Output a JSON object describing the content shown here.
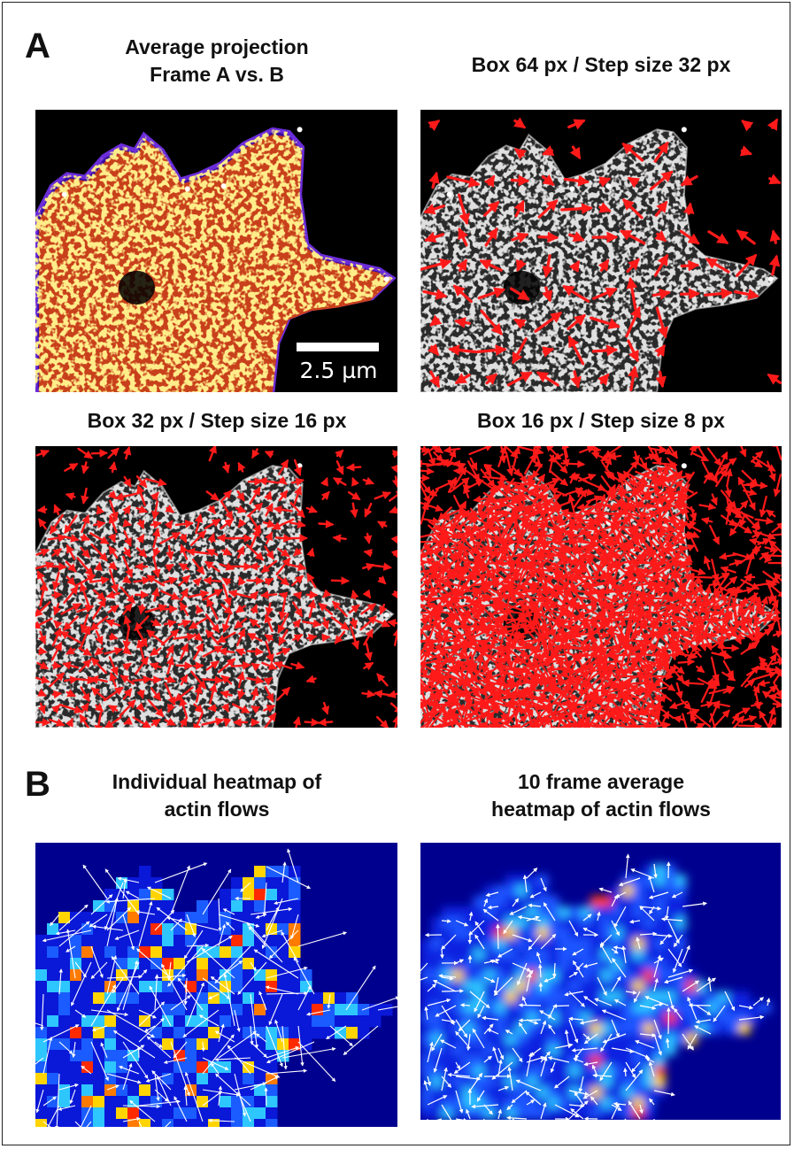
{
  "panel_a": {
    "letter": "A",
    "titles": {
      "avg_line1": "Average projection",
      "avg_line2": "Frame A vs. B",
      "box64": "Box 64 px / Step size 32 px",
      "box32": "Box 32 px / Step size 16 px",
      "box16": "Box 16 px / Step size 8 px"
    },
    "scale_bar_label": "2.5 µm",
    "colors": {
      "cmap_low": "#3a0ca3",
      "cmap_mid": "#e8641a",
      "cmap_high": "#ffe066",
      "vector": "#ff1a1a"
    }
  },
  "panel_b": {
    "letter": "B",
    "titles": {
      "individual_line1": "Individual heatmap of",
      "individual_line2": "actin flows",
      "average_line1": "10 frame average",
      "average_line2": "heatmap of  actin flows"
    },
    "colors": {
      "background": "#00008f",
      "low": "#0a2cff",
      "mid": "#2ec6ff",
      "high": "#ffd400",
      "peak": "#ff2a00",
      "vector": "#ffffff"
    }
  }
}
